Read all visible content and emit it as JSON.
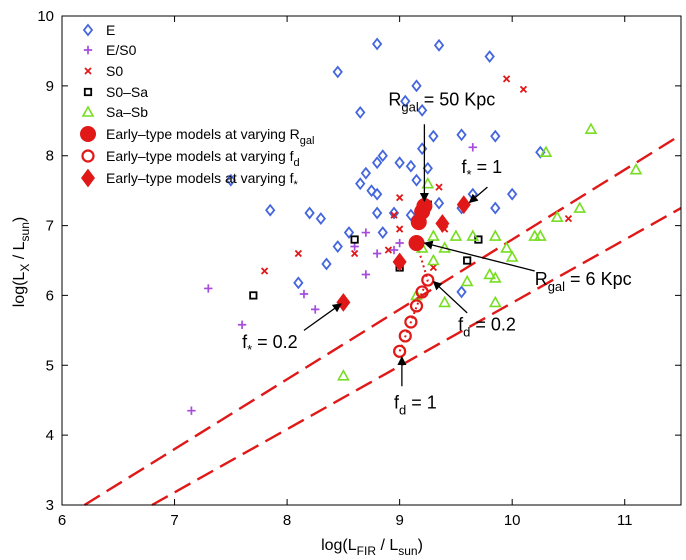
{
  "chart_data": {
    "type": "scatter",
    "xlabel": "log(L_FIR / L_sun)",
    "ylabel": "log(L_X / L_sun)",
    "xlim": [
      6,
      11.5
    ],
    "ylim": [
      3,
      10
    ],
    "xticks": [
      "6",
      "7",
      "8",
      "9",
      "10",
      "11"
    ],
    "yticks": [
      "3",
      "4",
      "5",
      "6",
      "7",
      "8",
      "9",
      "10"
    ],
    "colors": {
      "blue": "#4466dd",
      "purple": "#a64cdc",
      "red": "#e01818",
      "black": "#000000",
      "green": "#77dd22"
    },
    "legend": [
      {
        "key": "E",
        "label": "E"
      },
      {
        "key": "E/S0",
        "label": "E/S0"
      },
      {
        "key": "S0",
        "label": "S0"
      },
      {
        "key": "S0-Sa",
        "label": "S0–Sa"
      },
      {
        "key": "Sa-Sb",
        "label": "Sa–Sb"
      },
      {
        "key": "Rgal",
        "label_main": "Early–type models at varying R",
        "label_sub": "gal"
      },
      {
        "key": "fd",
        "label_main": "Early–type models at varying f",
        "label_sub": "d"
      },
      {
        "key": "fstar",
        "label_main": "Early–type models at varying f",
        "label_sub": "*"
      }
    ],
    "series": [
      {
        "name": "E",
        "marker": "diamond",
        "color": "#4466dd",
        "points": [
          [
            8.8,
            9.6
          ],
          [
            9.35,
            9.58
          ],
          [
            9.8,
            9.42
          ],
          [
            8.45,
            9.2
          ],
          [
            9.15,
            9.0
          ],
          [
            8.65,
            8.62
          ],
          [
            9.05,
            8.78
          ],
          [
            9.2,
            8.65
          ],
          [
            9.2,
            8.1
          ],
          [
            9.3,
            8.28
          ],
          [
            9.55,
            8.3
          ],
          [
            9.85,
            8.28
          ],
          [
            10.25,
            8.05
          ],
          [
            8.8,
            7.9
          ],
          [
            8.85,
            8.0
          ],
          [
            9.0,
            7.9
          ],
          [
            9.1,
            7.85
          ],
          [
            9.25,
            7.82
          ],
          [
            8.7,
            7.75
          ],
          [
            9.15,
            7.65
          ],
          [
            7.5,
            7.65
          ],
          [
            8.65,
            7.6
          ],
          [
            8.75,
            7.5
          ],
          [
            8.8,
            7.45
          ],
          [
            9.65,
            7.45
          ],
          [
            10.0,
            7.45
          ],
          [
            9.35,
            7.32
          ],
          [
            9.55,
            7.25
          ],
          [
            9.85,
            7.25
          ],
          [
            7.85,
            7.22
          ],
          [
            8.2,
            7.18
          ],
          [
            8.8,
            7.18
          ],
          [
            8.95,
            7.18
          ],
          [
            9.1,
            7.15
          ],
          [
            8.3,
            7.1
          ],
          [
            8.55,
            6.9
          ],
          [
            8.85,
            6.9
          ],
          [
            8.45,
            6.7
          ],
          [
            8.35,
            6.45
          ],
          [
            8.1,
            6.18
          ],
          [
            9.55,
            6.05
          ]
        ]
      },
      {
        "name": "E/S0",
        "marker": "plus",
        "color": "#a64cdc",
        "points": [
          [
            9.65,
            8.12
          ],
          [
            8.7,
            6.9
          ],
          [
            9.0,
            6.75
          ],
          [
            8.6,
            6.7
          ],
          [
            8.8,
            6.6
          ],
          [
            7.3,
            6.1
          ],
          [
            8.15,
            6.02
          ],
          [
            8.95,
            6.65
          ],
          [
            8.7,
            6.3
          ],
          [
            8.25,
            5.8
          ],
          [
            7.6,
            5.58
          ],
          [
            7.15,
            4.35
          ]
        ]
      },
      {
        "name": "S0",
        "marker": "cross",
        "color": "#e01818",
        "points": [
          [
            9.95,
            9.1
          ],
          [
            10.1,
            8.95
          ],
          [
            9.0,
            7.4
          ],
          [
            8.95,
            7.15
          ],
          [
            9.35,
            7.55
          ],
          [
            9.25,
            7.3
          ],
          [
            9.15,
            7.05
          ],
          [
            9.0,
            6.95
          ],
          [
            9.4,
            6.95
          ],
          [
            8.1,
            6.6
          ],
          [
            8.6,
            6.6
          ],
          [
            8.9,
            6.65
          ],
          [
            9.3,
            6.4
          ],
          [
            7.8,
            6.35
          ],
          [
            10.5,
            7.1
          ]
        ]
      },
      {
        "name": "S0-Sa",
        "marker": "square",
        "color": "#000000",
        "points": [
          [
            9.25,
            7.3
          ],
          [
            9.7,
            6.8
          ],
          [
            8.6,
            6.8
          ],
          [
            9.0,
            6.4
          ],
          [
            9.6,
            6.5
          ],
          [
            7.7,
            6.0
          ]
        ]
      },
      {
        "name": "Sa-Sb",
        "marker": "triangle",
        "color": "#77dd22",
        "points": [
          [
            10.7,
            8.38
          ],
          [
            10.3,
            8.05
          ],
          [
            9.25,
            7.6
          ],
          [
            11.1,
            7.8
          ],
          [
            10.4,
            7.12
          ],
          [
            10.6,
            7.25
          ],
          [
            9.3,
            6.85
          ],
          [
            9.5,
            6.85
          ],
          [
            9.65,
            6.85
          ],
          [
            9.85,
            6.85
          ],
          [
            10.2,
            6.85
          ],
          [
            10.25,
            6.85
          ],
          [
            9.2,
            6.68
          ],
          [
            9.4,
            6.68
          ],
          [
            9.95,
            6.68
          ],
          [
            10.0,
            6.55
          ],
          [
            9.3,
            6.5
          ],
          [
            9.6,
            6.2
          ],
          [
            9.8,
            6.3
          ],
          [
            9.85,
            6.25
          ],
          [
            9.4,
            5.9
          ],
          [
            9.85,
            5.9
          ],
          [
            9.15,
            6.0
          ],
          [
            8.5,
            4.85
          ]
        ]
      },
      {
        "name": "Early-type models at varying Rgal",
        "marker": "circle-filled",
        "color": "#e01818",
        "points": [
          [
            9.15,
            6.75
          ],
          [
            9.17,
            7.05
          ],
          [
            9.2,
            7.2
          ],
          [
            9.22,
            7.28
          ]
        ]
      },
      {
        "name": "Early-type models at varying fd",
        "marker": "circle-open",
        "color": "#e01818",
        "points": [
          [
            9.0,
            5.2
          ],
          [
            9.05,
            5.42
          ],
          [
            9.1,
            5.62
          ],
          [
            9.15,
            5.85
          ],
          [
            9.2,
            6.05
          ],
          [
            9.25,
            6.22
          ]
        ]
      },
      {
        "name": "Early-type models at varying f*",
        "marker": "diamond-filled",
        "color": "#e01818",
        "points": [
          [
            8.5,
            5.9
          ],
          [
            9.0,
            6.48
          ],
          [
            9.38,
            7.03
          ],
          [
            9.57,
            7.3
          ]
        ]
      }
    ],
    "lines": [
      {
        "name": "fit-line-upper",
        "style": "dashed",
        "color": "#e01818",
        "points": [
          [
            6.2,
            3.0
          ],
          [
            11.5,
            8.3
          ]
        ]
      },
      {
        "name": "fit-line-lower",
        "style": "dashed",
        "color": "#e01818",
        "points": [
          [
            6.8,
            3.0
          ],
          [
            11.5,
            7.25
          ]
        ]
      },
      {
        "name": "fd-track",
        "style": "dotted",
        "color": "#e01818",
        "points": [
          [
            9.0,
            5.2
          ],
          [
            9.1,
            5.62
          ],
          [
            9.2,
            6.05
          ],
          [
            9.25,
            6.22
          ],
          [
            9.15,
            6.75
          ]
        ]
      }
    ],
    "annotations": [
      {
        "key": "rgal50",
        "main": "R",
        "sub": "gal",
        "rest": " = 50 Kpc",
        "text_at": [
          8.9,
          8.72
        ],
        "arrow_from": [
          9.22,
          8.45
        ],
        "arrow_to": [
          9.22,
          7.35
        ]
      },
      {
        "key": "fstar1",
        "main": "f",
        "sub": "*",
        "rest": " = 1",
        "text_at": [
          9.55,
          7.75
        ],
        "arrow_from": [
          9.78,
          7.55
        ],
        "arrow_to": [
          9.62,
          7.33
        ]
      },
      {
        "key": "rgal6",
        "main": "R",
        "sub": "gal",
        "rest": " = 6 Kpc",
        "text_at": [
          10.2,
          6.15
        ],
        "arrow_from": [
          10.2,
          6.35
        ],
        "arrow_to": [
          9.22,
          6.75
        ]
      },
      {
        "key": "fd02",
        "main": "f",
        "sub": "d",
        "rest": " = 0.2",
        "text_at": [
          9.52,
          5.5
        ],
        "arrow_from": [
          9.6,
          5.75
        ],
        "arrow_to": [
          9.3,
          6.2
        ]
      },
      {
        "key": "fstar02",
        "main": "f",
        "sub": "*",
        "rest": " = 0.2",
        "text_at": [
          7.6,
          5.25
        ],
        "arrow_from": [
          8.15,
          5.5
        ],
        "arrow_to": [
          8.48,
          5.88
        ]
      },
      {
        "key": "fd1",
        "main": "f",
        "sub": "d",
        "rest": " = 1",
        "text_at": [
          8.95,
          4.38
        ],
        "arrow_from": [
          9.02,
          4.7
        ],
        "arrow_to": [
          9.02,
          5.12
        ]
      }
    ]
  }
}
